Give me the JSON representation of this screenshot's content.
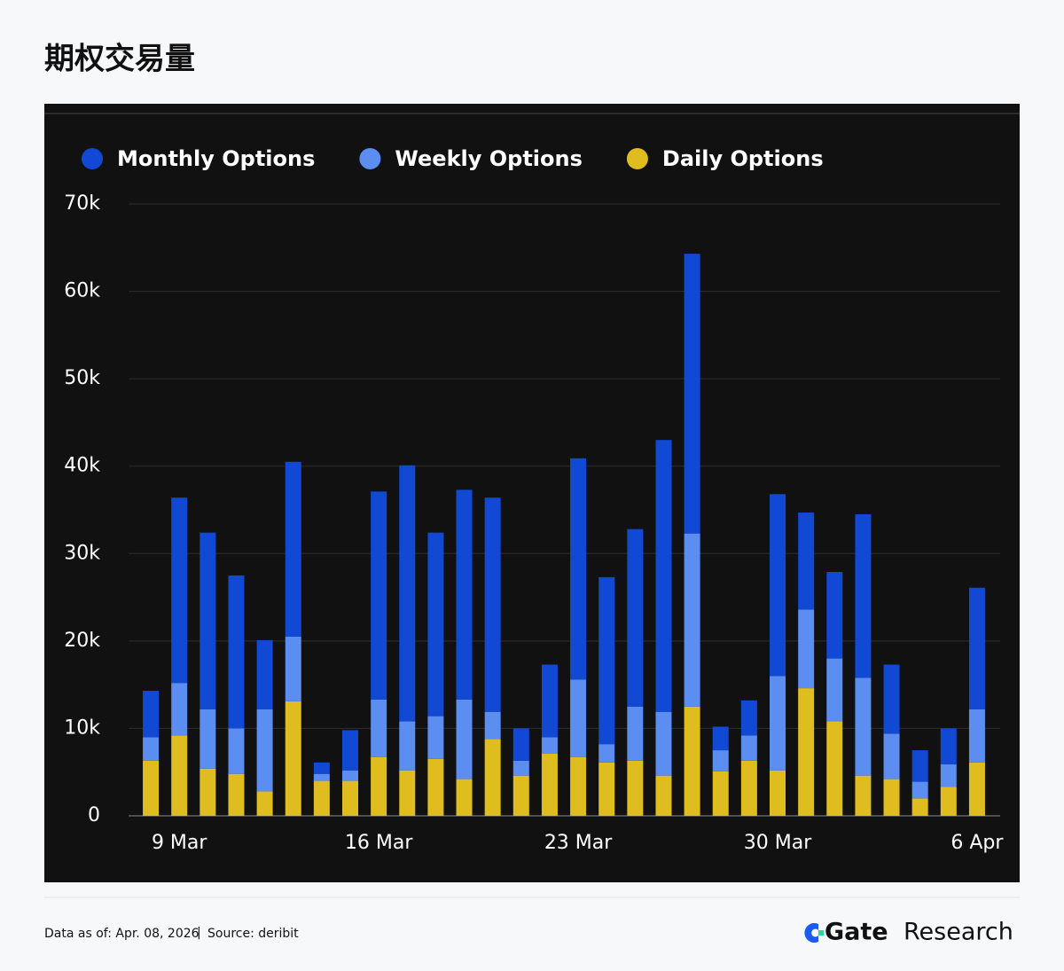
{
  "chart_data": {
    "type": "stacked-bar",
    "title": "期权交易量",
    "categories": [
      null,
      "9 Mar",
      null,
      null,
      null,
      null,
      null,
      null,
      "16 Mar",
      null,
      null,
      null,
      null,
      null,
      null,
      "23 Mar",
      null,
      null,
      null,
      null,
      null,
      null,
      "30 Mar",
      null,
      null,
      null,
      null,
      null,
      null,
      "6 Apr"
    ],
    "series": [
      {
        "name": "Daily Options",
        "color": "#dfbd1f",
        "values": [
          6300,
          9200,
          5400,
          4800,
          2800,
          13100,
          4000,
          4000,
          6700,
          5200,
          6500,
          4200,
          8800,
          4600,
          7100,
          6700,
          6100,
          6300,
          4600,
          12500,
          5100,
          6300,
          5200,
          14600,
          10800,
          4600,
          4200,
          2000,
          3300,
          6100
        ]
      },
      {
        "name": "Weekly Options",
        "color": "#5b8ef0",
        "values": [
          2700,
          6000,
          6800,
          5200,
          9400,
          7400,
          800,
          1200,
          6600,
          5600,
          4900,
          9100,
          3100,
          1700,
          1900,
          8900,
          2100,
          6200,
          7300,
          19800,
          2400,
          2900,
          10800,
          9000,
          7200,
          11200,
          5200,
          1900,
          2600,
          6100
        ]
      },
      {
        "name": "Monthly Options",
        "color": "#1149d4",
        "values": [
          5300,
          21200,
          20200,
          17500,
          7900,
          20000,
          1300,
          4600,
          23800,
          29300,
          21000,
          24000,
          24500,
          3700,
          8300,
          25300,
          19100,
          20300,
          31100,
          32000,
          2700,
          4000,
          20800,
          11100,
          9900,
          18700,
          7900,
          3600,
          4100,
          13900
        ]
      }
    ],
    "legend_order": [
      "Monthly Options",
      "Weekly Options",
      "Daily Options"
    ],
    "ylim": [
      0,
      70000
    ],
    "yticks": [
      0,
      {
        "value": 10000,
        "label": "10k"
      },
      {
        "value": 20000,
        "label": "20k"
      },
      {
        "value": 30000,
        "label": "30k"
      },
      {
        "value": 40000,
        "label": "40k"
      },
      {
        "value": 50000,
        "label": "50k"
      },
      {
        "value": 60000,
        "label": "60k"
      },
      {
        "value": 70000,
        "label": "70k"
      }
    ],
    "grid": true
  },
  "footer": {
    "data_as_of": "Data as of: Apr. 08, 2026",
    "separator": "|",
    "source": "Source:  deribit",
    "brand": "Gate",
    "brand_suffix": "Research"
  }
}
